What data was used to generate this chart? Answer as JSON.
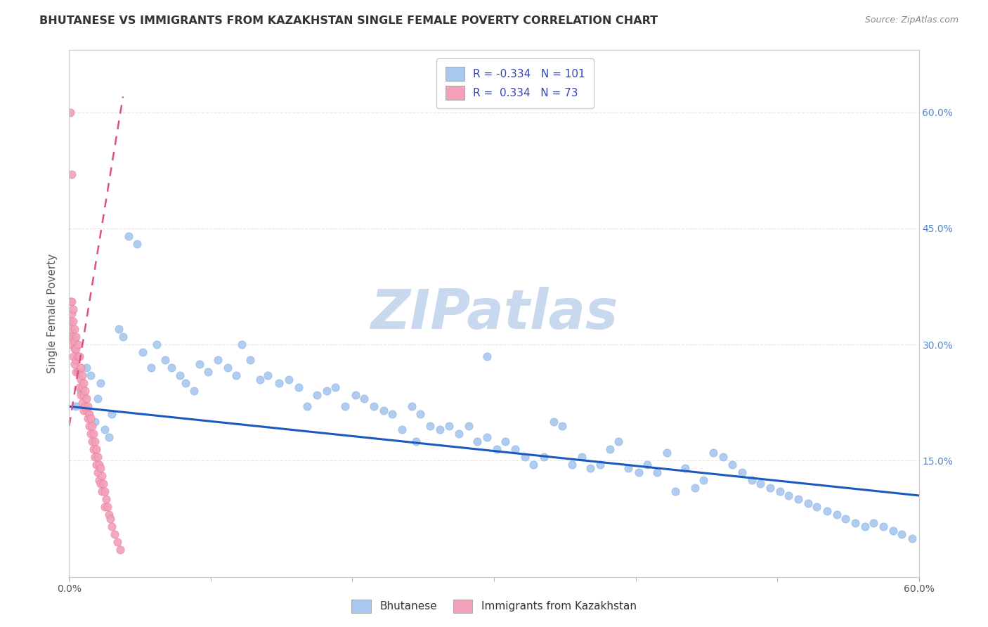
{
  "title": "BHUTANESE VS IMMIGRANTS FROM KAZAKHSTAN SINGLE FEMALE POVERTY CORRELATION CHART",
  "source": "Source: ZipAtlas.com",
  "ylabel": "Single Female Poverty",
  "xlim": [
    0.0,
    0.6
  ],
  "ylim": [
    0.0,
    0.68
  ],
  "legend_label_blue": "Bhutanese",
  "legend_label_pink": "Immigrants from Kazakhstan",
  "R_blue": -0.334,
  "N_blue": 101,
  "R_pink": 0.334,
  "N_pink": 73,
  "blue_color": "#a8c8f0",
  "pink_color": "#f4a0b8",
  "trend_blue_color": "#1a5abf",
  "trend_pink_color": "#e05080",
  "watermark_color": "#c8d8ee",
  "background_color": "#ffffff",
  "grid_color": "#dde8f0",
  "blue_scatter_x": [
    0.005,
    0.008,
    0.012,
    0.015,
    0.018,
    0.02,
    0.022,
    0.025,
    0.028,
    0.03,
    0.035,
    0.038,
    0.042,
    0.048,
    0.052,
    0.058,
    0.062,
    0.068,
    0.072,
    0.078,
    0.082,
    0.088,
    0.092,
    0.098,
    0.105,
    0.112,
    0.118,
    0.122,
    0.128,
    0.135,
    0.14,
    0.148,
    0.155,
    0.162,
    0.168,
    0.175,
    0.182,
    0.188,
    0.195,
    0.202,
    0.208,
    0.215,
    0.222,
    0.228,
    0.235,
    0.242,
    0.248,
    0.255,
    0.262,
    0.268,
    0.275,
    0.282,
    0.288,
    0.295,
    0.302,
    0.308,
    0.315,
    0.322,
    0.328,
    0.335,
    0.342,
    0.348,
    0.355,
    0.362,
    0.368,
    0.375,
    0.382,
    0.388,
    0.395,
    0.402,
    0.408,
    0.415,
    0.422,
    0.428,
    0.435,
    0.442,
    0.448,
    0.455,
    0.462,
    0.468,
    0.475,
    0.482,
    0.488,
    0.495,
    0.502,
    0.508,
    0.515,
    0.522,
    0.528,
    0.535,
    0.542,
    0.548,
    0.555,
    0.562,
    0.568,
    0.575,
    0.582,
    0.588,
    0.595,
    0.245,
    0.295
  ],
  "blue_scatter_y": [
    0.22,
    0.24,
    0.27,
    0.26,
    0.2,
    0.23,
    0.25,
    0.19,
    0.18,
    0.21,
    0.32,
    0.31,
    0.44,
    0.43,
    0.29,
    0.27,
    0.3,
    0.28,
    0.27,
    0.26,
    0.25,
    0.24,
    0.275,
    0.265,
    0.28,
    0.27,
    0.26,
    0.3,
    0.28,
    0.255,
    0.26,
    0.25,
    0.255,
    0.245,
    0.22,
    0.235,
    0.24,
    0.245,
    0.22,
    0.235,
    0.23,
    0.22,
    0.215,
    0.21,
    0.19,
    0.22,
    0.21,
    0.195,
    0.19,
    0.195,
    0.185,
    0.195,
    0.175,
    0.18,
    0.165,
    0.175,
    0.165,
    0.155,
    0.145,
    0.155,
    0.2,
    0.195,
    0.145,
    0.155,
    0.14,
    0.145,
    0.165,
    0.175,
    0.14,
    0.135,
    0.145,
    0.135,
    0.16,
    0.11,
    0.14,
    0.115,
    0.125,
    0.16,
    0.155,
    0.145,
    0.135,
    0.125,
    0.12,
    0.115,
    0.11,
    0.105,
    0.1,
    0.095,
    0.09,
    0.085,
    0.08,
    0.075,
    0.07,
    0.065,
    0.07,
    0.065,
    0.06,
    0.055,
    0.05,
    0.175,
    0.285
  ],
  "pink_scatter_x": [
    0.001,
    0.001,
    0.001,
    0.002,
    0.002,
    0.002,
    0.002,
    0.003,
    0.003,
    0.003,
    0.003,
    0.004,
    0.004,
    0.004,
    0.004,
    0.005,
    0.005,
    0.005,
    0.005,
    0.006,
    0.006,
    0.006,
    0.007,
    0.007,
    0.007,
    0.008,
    0.008,
    0.008,
    0.009,
    0.009,
    0.009,
    0.01,
    0.01,
    0.01,
    0.011,
    0.011,
    0.012,
    0.012,
    0.013,
    0.013,
    0.014,
    0.014,
    0.015,
    0.015,
    0.016,
    0.016,
    0.017,
    0.017,
    0.018,
    0.018,
    0.019,
    0.019,
    0.02,
    0.02,
    0.021,
    0.021,
    0.022,
    0.022,
    0.023,
    0.023,
    0.024,
    0.025,
    0.025,
    0.026,
    0.027,
    0.028,
    0.029,
    0.03,
    0.032,
    0.034,
    0.036,
    0.001,
    0.002
  ],
  "pink_scatter_y": [
    0.355,
    0.33,
    0.31,
    0.355,
    0.34,
    0.32,
    0.3,
    0.345,
    0.33,
    0.31,
    0.285,
    0.32,
    0.305,
    0.295,
    0.275,
    0.31,
    0.295,
    0.28,
    0.265,
    0.3,
    0.285,
    0.265,
    0.285,
    0.265,
    0.245,
    0.27,
    0.255,
    0.235,
    0.26,
    0.245,
    0.225,
    0.25,
    0.235,
    0.215,
    0.24,
    0.22,
    0.23,
    0.215,
    0.22,
    0.205,
    0.21,
    0.195,
    0.205,
    0.185,
    0.195,
    0.175,
    0.185,
    0.165,
    0.175,
    0.155,
    0.165,
    0.145,
    0.155,
    0.135,
    0.145,
    0.125,
    0.14,
    0.12,
    0.13,
    0.11,
    0.12,
    0.11,
    0.09,
    0.1,
    0.09,
    0.08,
    0.075,
    0.065,
    0.055,
    0.045,
    0.035,
    0.6,
    0.52
  ],
  "blue_trend_x0": 0.0,
  "blue_trend_y0": 0.22,
  "blue_trend_x1": 0.6,
  "blue_trend_y1": 0.105,
  "pink_trend_x0": 0.0,
  "pink_trend_y0": 0.195,
  "pink_trend_x1": 0.038,
  "pink_trend_y1": 0.62
}
